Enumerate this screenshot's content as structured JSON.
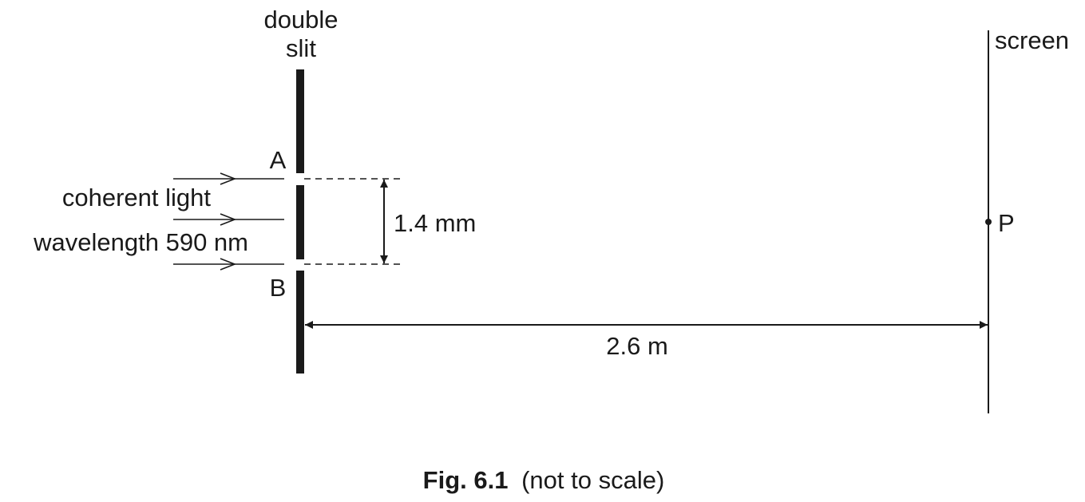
{
  "labels": {
    "double_slit_line1": "double",
    "double_slit_line2": "slit",
    "screen": "screen",
    "slit_a": "A",
    "slit_b": "B",
    "light_line1": "coherent light",
    "light_line2": "wavelength 590 nm",
    "separation": "1.4 mm",
    "distance": "2.6 m",
    "point_p": "P"
  },
  "caption": {
    "fig_number": "Fig. 6.1",
    "note": "(not to scale)"
  }
}
